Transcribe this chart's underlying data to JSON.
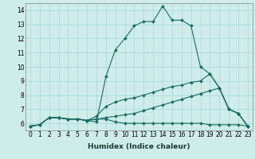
{
  "title": "",
  "xlabel": "Humidex (Indice chaleur)",
  "xlim": [
    -0.5,
    23.5
  ],
  "ylim": [
    5.5,
    14.5
  ],
  "xticks": [
    0,
    1,
    2,
    3,
    4,
    5,
    6,
    7,
    8,
    9,
    10,
    11,
    12,
    13,
    14,
    15,
    16,
    17,
    18,
    19,
    20,
    21,
    22,
    23
  ],
  "yticks": [
    6,
    7,
    8,
    9,
    10,
    11,
    12,
    13,
    14
  ],
  "bg_color": "#ceecea",
  "grid_color": "#a8d8d4",
  "line_color": "#1a6b5e",
  "lines": [
    [
      5.8,
      5.9,
      6.4,
      6.4,
      6.3,
      6.3,
      6.2,
      6.1,
      9.3,
      11.2,
      12.0,
      12.9,
      13.2,
      13.2,
      14.3,
      13.3,
      13.3,
      12.9,
      10.0,
      9.5,
      8.5,
      7.0,
      6.7,
      5.8
    ],
    [
      5.8,
      5.9,
      6.4,
      6.4,
      6.3,
      6.3,
      6.2,
      6.5,
      7.2,
      7.5,
      7.7,
      7.8,
      8.0,
      8.2,
      8.4,
      8.6,
      8.7,
      8.9,
      9.0,
      9.5,
      8.5,
      7.0,
      6.7,
      5.8
    ],
    [
      5.8,
      5.9,
      6.4,
      6.4,
      6.3,
      6.3,
      6.2,
      6.3,
      6.4,
      6.5,
      6.6,
      6.7,
      6.9,
      7.1,
      7.3,
      7.5,
      7.7,
      7.9,
      8.1,
      8.3,
      8.5,
      7.0,
      6.7,
      5.8
    ],
    [
      5.8,
      5.9,
      6.4,
      6.4,
      6.3,
      6.3,
      6.2,
      6.3,
      6.3,
      6.1,
      6.0,
      6.0,
      6.0,
      6.0,
      6.0,
      6.0,
      6.0,
      6.0,
      6.0,
      5.9,
      5.9,
      5.9,
      5.9,
      5.8
    ]
  ],
  "tick_fontsize": 5.5,
  "xlabel_fontsize": 6.5,
  "xlabel_color": "#1a3a33",
  "marker_size": 2.0,
  "linewidth": 0.8
}
